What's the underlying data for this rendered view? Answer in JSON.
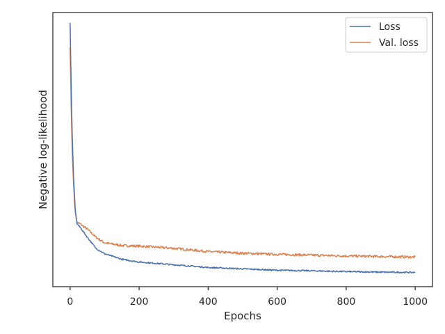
{
  "chart_data": {
    "type": "line",
    "title": "",
    "xlabel": "Epochs",
    "ylabel": "Negative log-likelihood",
    "xlim": [
      -50,
      1050
    ],
    "ylim": [
      0,
      1
    ],
    "y_tick_labels_shown": false,
    "x_ticks": [
      0,
      200,
      400,
      600,
      800,
      1000
    ],
    "x_tick_labels": [
      "0",
      "200",
      "400",
      "600",
      "800",
      "1000"
    ],
    "grid": false,
    "legend": {
      "placement": "top-right",
      "entries": [
        "Loss",
        "Val. loss"
      ]
    },
    "series": [
      {
        "name": "Loss",
        "color": "#4c72b0",
        "points": [
          [
            0,
            0.962
          ],
          [
            3,
            0.742
          ],
          [
            6,
            0.56
          ],
          [
            10,
            0.4
          ],
          [
            15,
            0.28
          ],
          [
            20,
            0.23
          ],
          [
            30,
            0.215
          ],
          [
            50,
            0.18
          ],
          [
            75,
            0.14
          ],
          [
            100,
            0.12
          ],
          [
            150,
            0.1
          ],
          [
            200,
            0.09
          ],
          [
            300,
            0.08
          ],
          [
            400,
            0.07
          ],
          [
            500,
            0.065
          ],
          [
            600,
            0.06
          ],
          [
            700,
            0.058
          ],
          [
            800,
            0.055
          ],
          [
            900,
            0.053
          ],
          [
            1000,
            0.052
          ]
        ]
      },
      {
        "name": "Val. loss",
        "color": "#dd8452",
        "points": [
          [
            0,
            0.873
          ],
          [
            3,
            0.66
          ],
          [
            6,
            0.5
          ],
          [
            10,
            0.37
          ],
          [
            15,
            0.27
          ],
          [
            20,
            0.235
          ],
          [
            30,
            0.228
          ],
          [
            50,
            0.21
          ],
          [
            75,
            0.18
          ],
          [
            100,
            0.16
          ],
          [
            150,
            0.15
          ],
          [
            200,
            0.148
          ],
          [
            300,
            0.14
          ],
          [
            400,
            0.128
          ],
          [
            500,
            0.122
          ],
          [
            600,
            0.118
          ],
          [
            700,
            0.115
          ],
          [
            800,
            0.112
          ],
          [
            900,
            0.11
          ],
          [
            1000,
            0.108
          ]
        ]
      }
    ]
  }
}
